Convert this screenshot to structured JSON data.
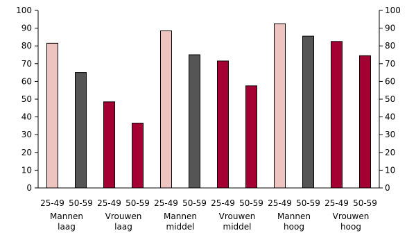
{
  "chart_data": {
    "type": "bar",
    "title": "",
    "xlabel": "",
    "ylabel": "",
    "ylim": [
      0,
      100
    ],
    "yticks": [
      0,
      10,
      20,
      30,
      40,
      50,
      60,
      70,
      80,
      90,
      100
    ],
    "right_axis": true,
    "grid": false,
    "legend": "none",
    "colors": {
      "light_pink": "#EDC4C0",
      "dark_gray": "#555555",
      "crimson": "#A50034"
    },
    "bars": [
      {
        "category": "25-49",
        "group": 0,
        "value": 81.5,
        "color": "light_pink"
      },
      {
        "category": "50-59",
        "group": 0,
        "value": 65,
        "color": "dark_gray"
      },
      {
        "category": "25-49",
        "group": 1,
        "value": 48.5,
        "color": "crimson"
      },
      {
        "category": "50-59",
        "group": 1,
        "value": 36.5,
        "color": "crimson"
      },
      {
        "category": "25-49",
        "group": 2,
        "value": 88.5,
        "color": "light_pink"
      },
      {
        "category": "50-59",
        "group": 2,
        "value": 75,
        "color": "dark_gray"
      },
      {
        "category": "25-49",
        "group": 3,
        "value": 71.5,
        "color": "crimson"
      },
      {
        "category": "50-59",
        "group": 3,
        "value": 57.5,
        "color": "crimson"
      },
      {
        "category": "25-49",
        "group": 4,
        "value": 92.5,
        "color": "light_pink"
      },
      {
        "category": "50-59",
        "group": 4,
        "value": 85.5,
        "color": "dark_gray"
      },
      {
        "category": "25-49",
        "group": 5,
        "value": 82.5,
        "color": "crimson"
      },
      {
        "category": "50-59",
        "group": 5,
        "value": 74.5,
        "color": "crimson"
      }
    ],
    "groups": [
      {
        "line1": "Mannen",
        "line2": "laag"
      },
      {
        "line1": "Vrouwen",
        "line2": "laag"
      },
      {
        "line1": "Mannen",
        "line2": "middel"
      },
      {
        "line1": "Vrouwen",
        "line2": "middel"
      },
      {
        "line1": "Mannen",
        "line2": "hoog"
      },
      {
        "line1": "Vrouwen",
        "line2": "hoog"
      }
    ]
  }
}
